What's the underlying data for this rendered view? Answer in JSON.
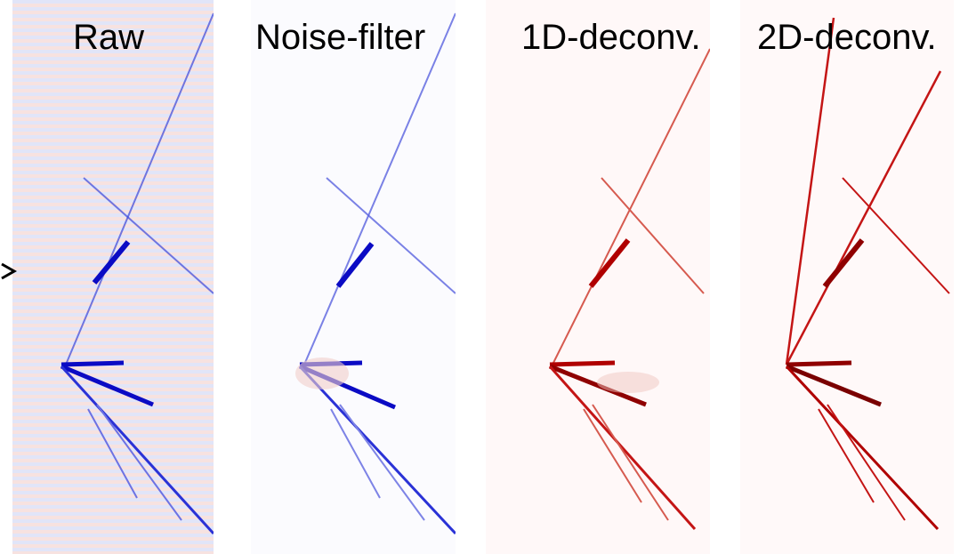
{
  "panels": [
    {
      "label": "Raw"
    },
    {
      "label": "Noise-filter"
    },
    {
      "label": "1D-deconv."
    },
    {
      "label": "2D-deconv."
    }
  ],
  "colors": {
    "background": "#ffffff",
    "blue_track": "#1a1ad6",
    "red_track": "#cc1111",
    "pale_red": "#f3c9c3",
    "pale_blue": "#c9cdf3"
  }
}
